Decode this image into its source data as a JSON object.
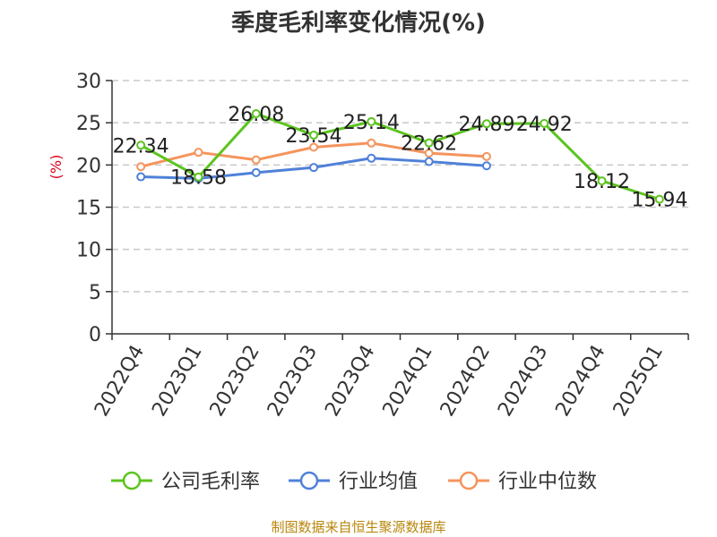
{
  "chart_data": {
    "type": "line",
    "title": "季度毛利率变化情况(%)",
    "ylabel": "(%)",
    "xlabel": "",
    "ylim": [
      0,
      30
    ],
    "yticks": [
      0,
      5,
      10,
      15,
      20,
      25,
      30
    ],
    "grid": true,
    "legend_position": "bottom",
    "categories": [
      "2022Q4",
      "2023Q1",
      "2023Q2",
      "2023Q3",
      "2023Q4",
      "2024Q1",
      "2024Q2",
      "2024Q3",
      "2024Q4",
      "2025Q1"
    ],
    "series": [
      {
        "name": "公司毛利率",
        "color": "#5cc41f",
        "values": [
          22.34,
          18.58,
          26.08,
          23.54,
          25.14,
          22.62,
          24.89,
          24.92,
          18.12,
          15.94
        ],
        "data_labels": [
          "22.34",
          "18.58",
          "26.08",
          "23.54",
          "25.14",
          "22.62",
          "24.89",
          "24.92",
          "18.12",
          "15.94"
        ]
      },
      {
        "name": "行业均值",
        "color": "#4f81d9",
        "values": [
          18.6,
          18.4,
          19.1,
          19.7,
          20.8,
          20.4,
          19.9,
          null,
          null,
          null
        ]
      },
      {
        "name": "行业中位数",
        "color": "#f5945c",
        "values": [
          19.8,
          21.5,
          20.6,
          22.1,
          22.6,
          21.4,
          21.0,
          null,
          null,
          null
        ]
      }
    ],
    "source": "制图数据来自恒生聚源数据库"
  }
}
